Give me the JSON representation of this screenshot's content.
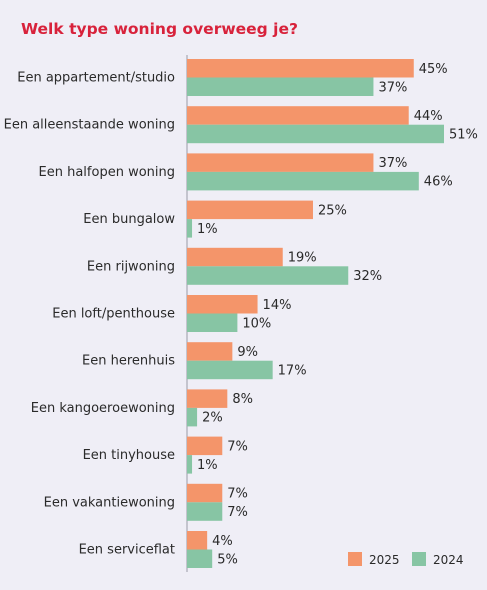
{
  "chart_data": {
    "type": "bar",
    "orientation": "horizontal",
    "title": "Welk type woning overweeg je?",
    "categories": [
      "Een appartement/studio",
      "Een alleenstaande woning",
      "Een halfopen woning",
      "Een bungalow",
      "Een rijwoning",
      "Een loft/penthouse",
      "Een herenhuis",
      "Een kangoeroewoning",
      "Een tinyhouse",
      "Een vakantiewoning",
      "Een serviceflat"
    ],
    "series": [
      {
        "name": "2025",
        "color": "#f4956a",
        "values": [
          45,
          44,
          37,
          25,
          19,
          14,
          9,
          8,
          7,
          7,
          4
        ],
        "labels": [
          "45%",
          "44%",
          "37%",
          "25%",
          "19%",
          "14%",
          "9%",
          "8%",
          "7%",
          "7%",
          "4%"
        ]
      },
      {
        "name": "2024",
        "color": "#87c5a4",
        "values": [
          37,
          51,
          46,
          1,
          32,
          10,
          17,
          2,
          1,
          7,
          5
        ],
        "labels": [
          "37%",
          "51%",
          "46%",
          "1%",
          "32%",
          "10%",
          "17%",
          "2%",
          "1%",
          "7%",
          "5%"
        ]
      }
    ],
    "xlim": [
      0,
      51
    ],
    "grid": false,
    "legend_position": "bottom-right"
  }
}
